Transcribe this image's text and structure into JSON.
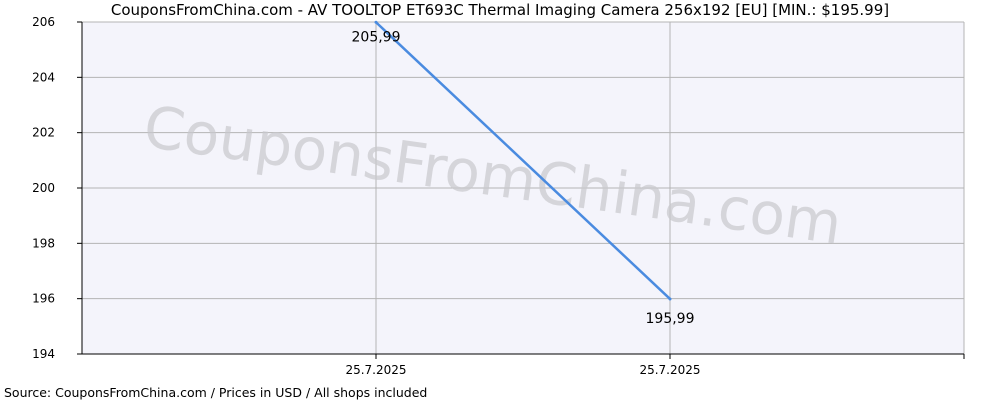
{
  "chart_data": {
    "type": "line",
    "title": "CouponsFromChina.com - AV TOOLTOP ET693C Thermal Imaging Camera 256x192 [EU] [MIN.: $195.99]",
    "source": "Source: CouponsFromChina.com / Prices in USD / All shops included",
    "watermark": "CouponsFromChina.com",
    "xlabel": "",
    "ylabel": "",
    "ylim": [
      194,
      206
    ],
    "y_ticks": [
      "194",
      "196",
      "198",
      "200",
      "202",
      "204",
      "206"
    ],
    "x_ticks": [
      "25.7.2025",
      "25.7.2025"
    ],
    "grid": true,
    "series": [
      {
        "color": "#4a8be0",
        "points": [
          {
            "x": "25.7.2025",
            "y": 205.99,
            "label": "205,99"
          },
          {
            "x": "25.7.2025",
            "y": 195.99,
            "label": "195,99"
          }
        ]
      }
    ],
    "colors": {
      "plot_background": "#f4f4fb",
      "grid": "#b4b4b4",
      "line": "#4a8be0",
      "watermark": "#c8c8cc"
    }
  }
}
